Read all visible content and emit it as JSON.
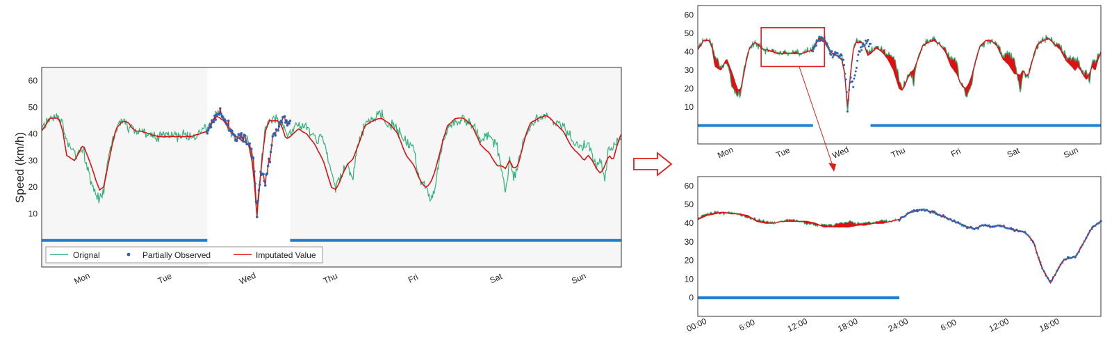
{
  "colors": {
    "original": "#2db37a",
    "observed": "#2f62b8",
    "imputed": "#dd1111",
    "mask": "#1f7fd0",
    "shade": "#f6f6f6",
    "arrow": "#e21b1b"
  },
  "chart_data": [
    {
      "id": "main",
      "type": "line",
      "ylabel": "Speed (km/h)",
      "ylim": [
        -10,
        65
      ],
      "yticks": [
        "10",
        "20",
        "30",
        "40",
        "50",
        "60"
      ],
      "ytick_values": [
        10,
        20,
        30,
        40,
        50,
        60
      ],
      "xlim": [
        0,
        7
      ],
      "xticks": [
        "Mon",
        "Tue",
        "Wed",
        "Thu",
        "Fri",
        "Sat",
        "Sun"
      ],
      "xtick_values": [
        0.5,
        1.5,
        2.5,
        3.5,
        4.5,
        5.5,
        6.5
      ],
      "legend": {
        "placement": "lower-left",
        "items": [
          "Orignal",
          "Partially Observed",
          "Imputated Value"
        ]
      },
      "observed_window": [
        2.0,
        3.0
      ],
      "mask_segments": [
        [
          0,
          2.0
        ],
        [
          3.0,
          7
        ]
      ],
      "series": [
        {
          "name": "Orignal",
          "x": [
            0,
            0.1,
            0.2,
            0.25,
            0.3,
            0.4,
            0.5,
            0.55,
            0.6,
            0.65,
            0.7,
            0.75,
            0.8,
            0.85,
            0.9,
            0.95,
            1.0,
            1.05,
            1.1,
            1.15,
            1.2,
            1.3,
            1.4,
            1.5,
            1.6,
            1.7,
            1.8,
            1.9,
            2.0,
            2.1,
            2.2,
            2.3,
            2.4,
            2.5,
            2.55,
            2.6,
            2.65,
            2.7,
            2.75,
            2.8,
            2.85,
            2.9,
            2.95,
            3.0,
            3.1,
            3.2,
            3.3,
            3.4,
            3.5,
            3.55,
            3.6,
            3.65,
            3.7,
            3.75,
            3.8,
            3.85,
            3.9,
            4.0,
            4.1,
            4.2,
            4.3,
            4.4,
            4.5,
            4.55,
            4.6,
            4.65,
            4.7,
            4.75,
            4.8,
            4.85,
            4.9,
            5.0,
            5.1,
            5.2,
            5.3,
            5.4,
            5.5,
            5.55,
            5.6,
            5.65,
            5.7,
            5.75,
            5.8,
            5.85,
            5.9,
            6.0,
            6.1,
            6.2,
            6.3,
            6.4,
            6.5,
            6.55,
            6.6,
            6.65,
            6.7,
            6.75,
            6.8,
            6.85,
            6.9,
            6.95,
            7.0
          ],
          "y": [
            42,
            46,
            47,
            44,
            38,
            32,
            34,
            28,
            21,
            17,
            16,
            18,
            30,
            37,
            41,
            44,
            45,
            42,
            43,
            40,
            41,
            40,
            39,
            40,
            39,
            40,
            39,
            41,
            42,
            48,
            47,
            40,
            38,
            37,
            30,
            8,
            28,
            42,
            45,
            46,
            45,
            44,
            40,
            40,
            44,
            42,
            39,
            37,
            25,
            20,
            23,
            27,
            28,
            22,
            34,
            39,
            43,
            46,
            47,
            44,
            41,
            37,
            34,
            24,
            22,
            18,
            16,
            20,
            30,
            37,
            42,
            45,
            46,
            44,
            38,
            40,
            35,
            27,
            18,
            30,
            24,
            28,
            36,
            40,
            43,
            46,
            48,
            44,
            43,
            38,
            35,
            36,
            37,
            32,
            28,
            30,
            22,
            36,
            34,
            38,
            38
          ]
        },
        {
          "name": "Imputated Value",
          "x": [
            0,
            0.1,
            0.2,
            0.25,
            0.3,
            0.4,
            0.5,
            0.55,
            0.6,
            0.65,
            0.7,
            0.75,
            0.8,
            0.85,
            0.9,
            0.95,
            1.0,
            1.05,
            1.1,
            1.15,
            1.2,
            1.3,
            1.4,
            1.5,
            1.6,
            1.7,
            1.8,
            1.9,
            2.0,
            2.1,
            2.2,
            2.3,
            2.4,
            2.5,
            2.55,
            2.6,
            2.65,
            2.7,
            2.75,
            2.8,
            2.85,
            2.9,
            2.95,
            3.0,
            3.1,
            3.2,
            3.3,
            3.4,
            3.5,
            3.55,
            3.6,
            3.65,
            3.7,
            3.75,
            3.8,
            3.85,
            3.9,
            4.0,
            4.1,
            4.2,
            4.3,
            4.4,
            4.5,
            4.55,
            4.6,
            4.65,
            4.7,
            4.75,
            4.8,
            4.85,
            4.9,
            5.0,
            5.1,
            5.2,
            5.3,
            5.4,
            5.5,
            5.55,
            5.6,
            5.65,
            5.7,
            5.75,
            5.8,
            5.85,
            5.9,
            6.0,
            6.1,
            6.2,
            6.3,
            6.4,
            6.5,
            6.55,
            6.6,
            6.65,
            6.7,
            6.75,
            6.8,
            6.85,
            6.9,
            6.95,
            7.0
          ],
          "y": [
            41,
            46,
            46,
            42,
            32,
            30,
            36,
            32,
            28,
            23,
            19,
            20,
            28,
            36,
            42,
            44,
            45,
            44,
            42,
            41,
            41,
            40,
            39,
            39,
            39,
            39,
            39,
            40,
            41,
            47,
            45,
            40,
            38,
            36,
            28,
            10,
            27,
            41,
            45,
            45,
            45,
            43,
            38,
            39,
            42,
            40,
            36,
            30,
            20,
            19,
            22,
            26,
            29,
            30,
            34,
            38,
            43,
            45,
            46,
            44,
            40,
            32,
            28,
            24,
            21,
            20,
            22,
            26,
            32,
            38,
            43,
            46,
            46,
            43,
            36,
            33,
            28,
            28,
            27,
            30,
            27,
            28,
            34,
            40,
            44,
            46,
            47,
            44,
            41,
            35,
            32,
            30,
            32,
            30,
            27,
            25,
            28,
            32,
            30,
            36,
            40
          ]
        },
        {
          "name": "Partially Observed",
          "x": [
            2.0,
            2.05,
            2.1,
            2.15,
            2.2,
            2.25,
            2.3,
            2.35,
            2.4,
            2.45,
            2.5,
            2.55,
            2.58,
            2.6,
            2.62,
            2.65,
            2.7,
            2.75,
            2.8,
            2.85,
            2.9,
            2.95,
            3.0
          ],
          "y": [
            41,
            44,
            47,
            48,
            46,
            44,
            40,
            38,
            39,
            38,
            37,
            32,
            20,
            8,
            18,
            26,
            22,
            30,
            40,
            42,
            45,
            45,
            44
          ]
        }
      ]
    },
    {
      "id": "top-right",
      "type": "line",
      "ylim": [
        -10,
        65
      ],
      "yticks": [
        "10",
        "20",
        "30",
        "40",
        "50",
        "60"
      ],
      "ytick_values": [
        10,
        20,
        30,
        40,
        50,
        60
      ],
      "xlim": [
        0,
        7
      ],
      "xticks": [
        "Mon",
        "Tue",
        "Wed",
        "Thu",
        "Fri",
        "Sat",
        "Sun"
      ],
      "xtick_values": [
        0.5,
        1.5,
        2.5,
        3.5,
        4.5,
        5.5,
        6.5
      ],
      "mask_segments": [
        [
          0,
          2.0
        ],
        [
          3.0,
          7
        ]
      ],
      "zoom_box": {
        "x": [
          1.1,
          2.2
        ],
        "y": [
          32,
          53
        ]
      }
    },
    {
      "id": "bottom-right",
      "type": "line",
      "ylim": [
        -10,
        65
      ],
      "yticks": [
        "0",
        "10",
        "20",
        "30",
        "40",
        "50",
        "60"
      ],
      "ytick_values": [
        0,
        10,
        20,
        30,
        40,
        50,
        60
      ],
      "xlim": [
        0,
        48
      ],
      "xticks": [
        "00:00",
        "6:00",
        "12:00",
        "18:00",
        "24:00",
        "6:00",
        "12:00",
        "18:00"
      ],
      "xtick_values": [
        0,
        6,
        12,
        18,
        24,
        30,
        36,
        42
      ],
      "mask_segments": [
        [
          0,
          24
        ]
      ],
      "observed_window": [
        24,
        48
      ],
      "series": [
        {
          "name": "Orignal",
          "x": [
            0,
            1,
            2,
            3,
            4,
            5,
            6,
            7,
            8,
            9,
            10,
            11,
            12,
            13,
            14,
            15,
            16,
            17,
            18,
            19,
            20,
            21,
            22,
            23,
            24,
            25,
            26,
            27,
            28,
            29,
            30,
            31,
            32,
            33,
            34,
            35,
            36,
            37,
            38,
            39,
            40,
            40.5,
            41,
            41.5,
            42,
            42.5,
            43,
            43.5,
            44,
            45,
            46,
            47,
            48
          ],
          "y": [
            43,
            45,
            46,
            45,
            46,
            44,
            43,
            42,
            41,
            40,
            41,
            42,
            41,
            40,
            39,
            39,
            39,
            40,
            41,
            40,
            41,
            40,
            42,
            41,
            42,
            45,
            47,
            47,
            46,
            44,
            42,
            40,
            38,
            37,
            39,
            38,
            39,
            37,
            36,
            35,
            30,
            22,
            16,
            12,
            8,
            12,
            16,
            20,
            21,
            22,
            30,
            38,
            41
          ]
        },
        {
          "name": "Imputated Value",
          "x": [
            0,
            1,
            2,
            3,
            4,
            5,
            6,
            7,
            8,
            9,
            10,
            11,
            12,
            13,
            14,
            15,
            16,
            17,
            18,
            19,
            20,
            21,
            22,
            23,
            24,
            25,
            26,
            27,
            28,
            29,
            30,
            31,
            32,
            33,
            34,
            35,
            36,
            37,
            38,
            39,
            40,
            40.5,
            41,
            41.5,
            42,
            42.5,
            43,
            43.5,
            44,
            45,
            46,
            47,
            48
          ],
          "y": [
            42,
            44,
            45,
            46,
            45,
            45,
            44,
            41,
            40,
            40,
            41,
            41,
            41,
            41,
            40,
            38,
            38,
            38,
            38,
            39,
            39,
            40,
            40,
            41,
            42,
            45,
            47,
            47,
            46,
            44,
            42,
            40,
            38,
            37,
            39,
            38,
            39,
            37,
            36,
            35,
            30,
            22,
            16,
            12,
            8,
            12,
            16,
            20,
            21,
            22,
            30,
            38,
            41
          ]
        },
        {
          "name": "Partially Observed",
          "x": [
            24,
            25,
            26,
            27,
            28,
            29,
            30,
            31,
            32,
            33,
            34,
            35,
            36,
            37,
            38,
            39,
            40,
            40.5,
            41,
            41.5,
            42,
            42.5,
            43,
            43.5,
            44,
            45,
            46,
            47,
            48
          ],
          "y": [
            42,
            45,
            47,
            47,
            46,
            44,
            42,
            40,
            38,
            37,
            39,
            38,
            39,
            37,
            36,
            35,
            30,
            22,
            16,
            12,
            8,
            12,
            16,
            20,
            21,
            22,
            30,
            38,
            41
          ]
        }
      ]
    }
  ]
}
